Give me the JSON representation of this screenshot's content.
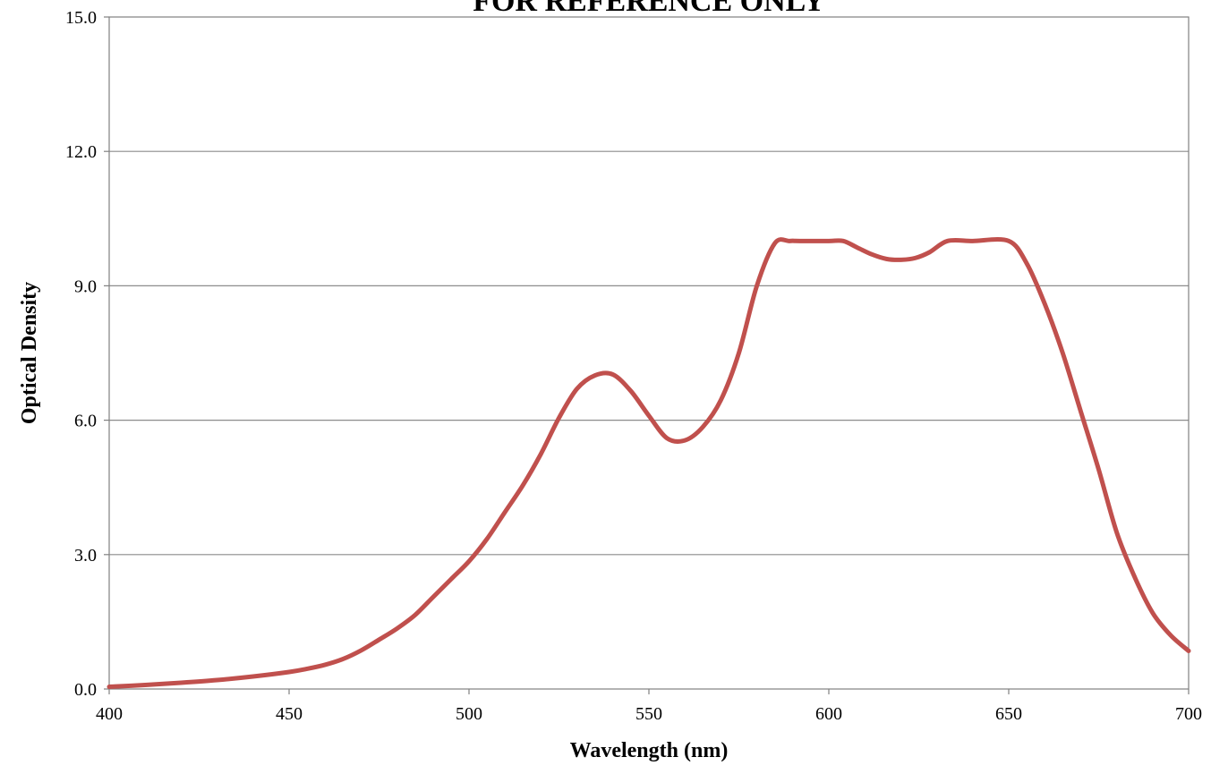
{
  "chart_data": {
    "type": "line",
    "title": "FOR REFERENCE ONLY",
    "xlabel": "Wavelength (nm)",
    "ylabel": "Optical Density",
    "xlim": [
      400,
      700
    ],
    "ylim": [
      0,
      15
    ],
    "x_ticks": [
      "400",
      "450",
      "500",
      "550",
      "600",
      "650",
      "700"
    ],
    "y_ticks": [
      "0.0",
      "3.0",
      "6.0",
      "9.0",
      "12.0",
      "15.0"
    ],
    "grid": "horizontal",
    "line_color": "#c0504d",
    "series": [
      {
        "x": [
          400,
          410,
          420,
          430,
          440,
          450,
          455,
          460,
          465,
          470,
          475,
          480,
          485,
          490,
          495,
          500,
          505,
          510,
          515,
          520,
          525,
          530,
          535,
          540,
          545,
          550,
          555,
          560,
          565,
          570,
          575,
          580,
          585,
          589,
          592,
          600,
          604,
          608,
          612,
          616,
          620,
          624,
          628,
          633,
          640,
          650,
          655,
          660,
          665,
          670,
          675,
          680,
          685,
          690,
          695,
          700
        ],
        "y": [
          0.05,
          0.09,
          0.14,
          0.2,
          0.28,
          0.38,
          0.45,
          0.54,
          0.67,
          0.86,
          1.1,
          1.35,
          1.65,
          2.05,
          2.45,
          2.85,
          3.35,
          3.95,
          4.55,
          5.25,
          6.05,
          6.7,
          7.0,
          7.02,
          6.65,
          6.1,
          5.6,
          5.55,
          5.85,
          6.45,
          7.5,
          9.0,
          9.95,
          10.0,
          10.0,
          10.0,
          10.0,
          9.85,
          9.7,
          9.6,
          9.58,
          9.62,
          9.75,
          10.0,
          10.0,
          10.0,
          9.5,
          8.6,
          7.5,
          6.2,
          4.9,
          3.5,
          2.5,
          1.7,
          1.2,
          0.85
        ]
      }
    ]
  }
}
